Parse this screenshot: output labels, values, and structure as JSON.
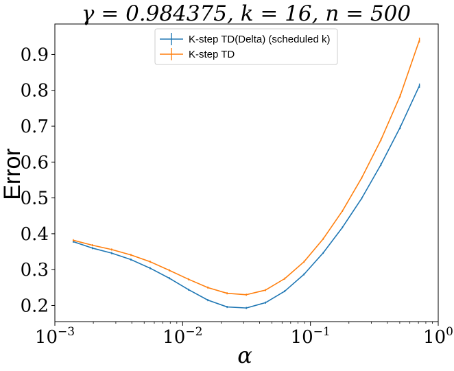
{
  "chart_data": {
    "type": "line",
    "title": "γ = 0.984375, k = 16, n = 500",
    "xlabel": "α",
    "ylabel": "Error",
    "xscale": "log",
    "xlim": [
      0.001,
      1
    ],
    "ylim": [
      0.155,
      0.985
    ],
    "x_ticks": [
      {
        "value": 0.001,
        "base": "10",
        "exp": "−3"
      },
      {
        "value": 0.01,
        "base": "10",
        "exp": "−2"
      },
      {
        "value": 0.1,
        "base": "10",
        "exp": "−1"
      },
      {
        "value": 1,
        "base": "10",
        "exp": "0"
      }
    ],
    "y_ticks": [
      {
        "value": 0.2,
        "label": "0.2"
      },
      {
        "value": 0.3,
        "label": "0.3"
      },
      {
        "value": 0.4,
        "label": "0.4"
      },
      {
        "value": 0.5,
        "label": "0.5"
      },
      {
        "value": 0.6,
        "label": "0.6"
      },
      {
        "value": 0.7,
        "label": "0.7"
      },
      {
        "value": 0.8,
        "label": "0.8"
      },
      {
        "value": 0.9,
        "label": "0.9"
      }
    ],
    "grid": false,
    "legend_position": "upper center",
    "x": [
      0.001392,
      0.001969,
      0.002784,
      0.003937,
      0.005568,
      0.007874,
      0.011136,
      0.015749,
      0.022272,
      0.031497,
      0.044544,
      0.062995,
      0.089088,
      0.125989,
      0.178176,
      0.251979,
      0.356351,
      0.503958,
      0.712703
    ],
    "series": [
      {
        "name": "K-step TD(Delta) (scheduled k)",
        "color": "#1f77b4",
        "values": [
          0.378,
          0.36,
          0.346,
          0.328,
          0.304,
          0.276,
          0.244,
          0.215,
          0.196,
          0.193,
          0.208,
          0.24,
          0.287,
          0.347,
          0.418,
          0.499,
          0.593,
          0.697,
          0.813
        ],
        "errors": [
          0.003,
          0.003,
          0.003,
          0.003,
          0.003,
          0.003,
          0.003,
          0.003,
          0.003,
          0.003,
          0.003,
          0.003,
          0.003,
          0.003,
          0.003,
          0.003,
          0.004,
          0.005,
          0.006
        ]
      },
      {
        "name": "K-step TD",
        "color": "#ff7f0e",
        "values": [
          0.382,
          0.368,
          0.356,
          0.341,
          0.322,
          0.298,
          0.273,
          0.25,
          0.234,
          0.23,
          0.243,
          0.275,
          0.322,
          0.386,
          0.464,
          0.556,
          0.662,
          0.785,
          0.94
        ],
        "errors": [
          0.003,
          0.003,
          0.003,
          0.003,
          0.003,
          0.003,
          0.003,
          0.003,
          0.003,
          0.003,
          0.003,
          0.003,
          0.003,
          0.003,
          0.003,
          0.003,
          0.004,
          0.005,
          0.007
        ]
      }
    ]
  }
}
